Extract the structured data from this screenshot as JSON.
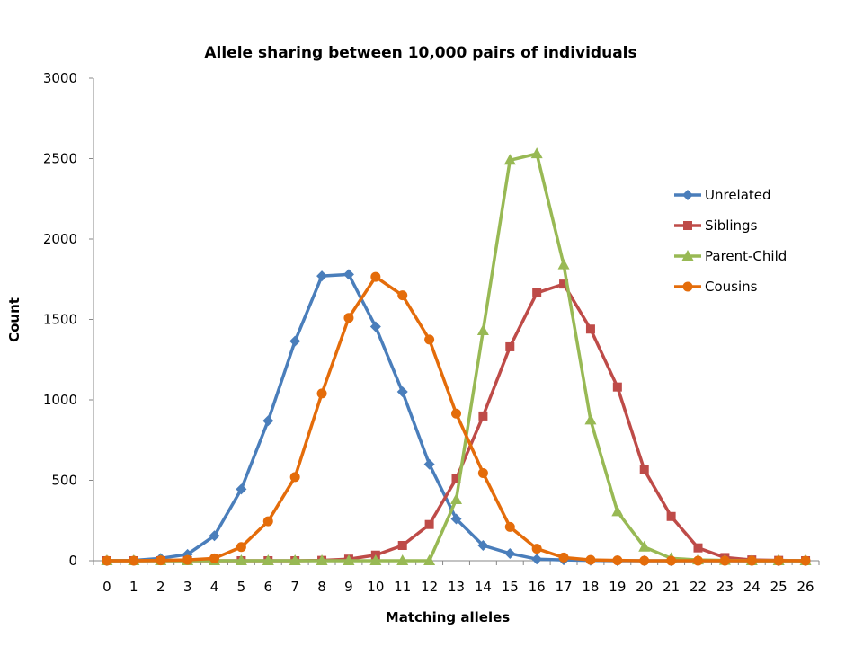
{
  "chart_data": {
    "type": "line",
    "title": "Allele sharing between 10,000 pairs of individuals",
    "xlabel": "Matching  alleles",
    "ylabel": "Count",
    "x": [
      0,
      1,
      2,
      3,
      4,
      5,
      6,
      7,
      8,
      9,
      10,
      11,
      12,
      13,
      14,
      15,
      16,
      17,
      18,
      19,
      20,
      21,
      22,
      23,
      24,
      25,
      26
    ],
    "ylim": [
      0,
      3000
    ],
    "yticks": [
      0,
      500,
      1000,
      1500,
      2000,
      2500,
      3000
    ],
    "grid": false,
    "legend": "right",
    "series": [
      {
        "name": "Unrelated",
        "color": "#4a7ebb",
        "marker": "diamond",
        "values": [
          0,
          2,
          15,
          40,
          155,
          445,
          870,
          1365,
          1770,
          1780,
          1455,
          1050,
          600,
          260,
          95,
          45,
          10,
          5,
          2,
          0,
          0,
          0,
          0,
          0,
          0,
          0,
          0
        ]
      },
      {
        "name": "Siblings",
        "color": "#be4b48",
        "marker": "square",
        "values": [
          0,
          0,
          0,
          0,
          0,
          0,
          0,
          0,
          2,
          10,
          35,
          95,
          225,
          510,
          900,
          1330,
          1665,
          1720,
          1440,
          1080,
          565,
          275,
          80,
          20,
          5,
          2,
          0
        ]
      },
      {
        "name": "Parent-Child",
        "color": "#98b954",
        "marker": "triangle",
        "values": [
          0,
          0,
          0,
          0,
          0,
          0,
          0,
          0,
          0,
          0,
          0,
          0,
          0,
          380,
          1430,
          2490,
          2530,
          1840,
          875,
          305,
          85,
          15,
          5,
          2,
          0,
          0,
          0
        ]
      },
      {
        "name": "Cousins",
        "color": "#e46c0a",
        "marker": "circle",
        "values": [
          0,
          0,
          2,
          5,
          15,
          85,
          245,
          520,
          1040,
          1510,
          1765,
          1650,
          1375,
          915,
          545,
          210,
          75,
          20,
          5,
          2,
          0,
          0,
          0,
          0,
          0,
          0,
          0
        ]
      }
    ]
  }
}
